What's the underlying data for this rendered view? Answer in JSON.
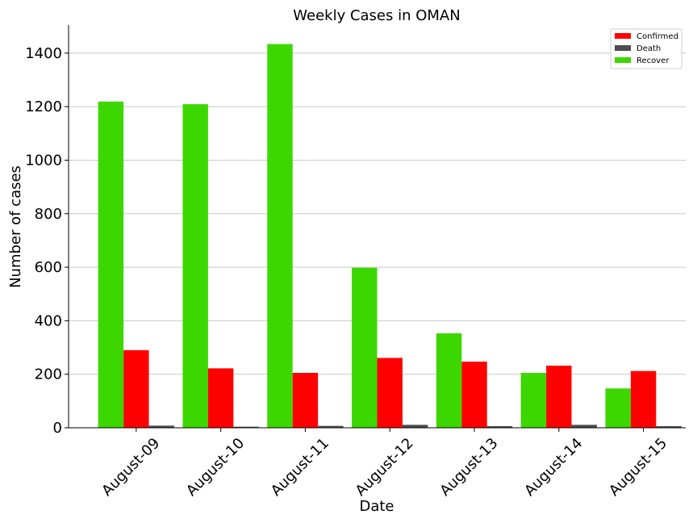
{
  "chart_data": {
    "type": "bar",
    "title": "Weekly Cases in OMAN",
    "xlabel": "Date",
    "ylabel": "Number of cases",
    "categories": [
      "August-09",
      "August-10",
      "August-11",
      "August-12",
      "August-13",
      "August-14",
      "August-15"
    ],
    "series": [
      {
        "name": "Recover",
        "color": "#3dd700",
        "values": [
          1219,
          1209,
          1434,
          598,
          353,
          205,
          147
        ]
      },
      {
        "name": "Confirmed",
        "color": "#ff0000",
        "values": [
          290,
          222,
          205,
          261,
          247,
          232,
          212
        ]
      },
      {
        "name": "Death",
        "color": "#4d4d4d",
        "values": [
          8,
          4,
          7,
          11,
          6,
          11,
          6
        ]
      }
    ],
    "legend_order": [
      "Confirmed",
      "Death",
      "Recover"
    ],
    "yticks": [
      0,
      200,
      400,
      600,
      800,
      1000,
      1200,
      1400
    ],
    "ylim": [
      0,
      1505
    ],
    "grid": "horizontal",
    "legend_position": "top-right"
  }
}
